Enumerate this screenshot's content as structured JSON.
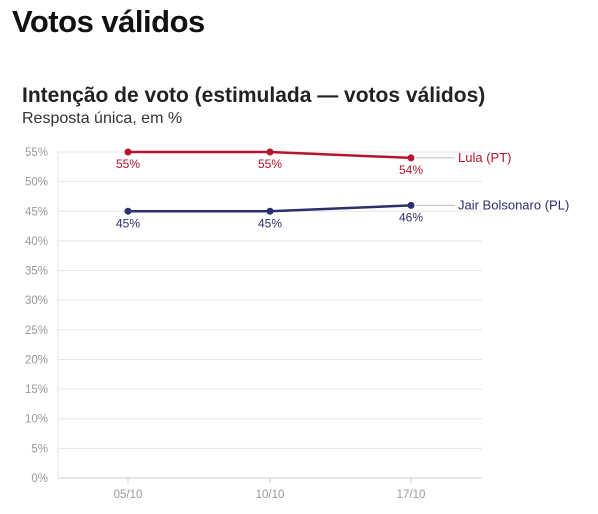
{
  "page": {
    "headline": "Votos válidos"
  },
  "chart_data": {
    "type": "line",
    "title": "Intenção de voto (estimulada — votos válidos)",
    "subtitle": "Resposta única, em %",
    "xlabel": "",
    "ylabel": "",
    "categories": [
      "05/10",
      "10/10",
      "17/10"
    ],
    "ylim": [
      0,
      55
    ],
    "yticks": [
      0,
      5,
      10,
      15,
      20,
      25,
      30,
      35,
      40,
      45,
      50,
      55
    ],
    "ytick_suffix": "%",
    "grid": true,
    "series": [
      {
        "name": "Lula (PT)",
        "values": [
          55,
          55,
          54
        ],
        "labels": [
          "55%",
          "55%",
          "54%"
        ],
        "color": "#b5162b",
        "label_position": "below"
      },
      {
        "name": "Jair Bolsonaro (PL)",
        "values": [
          45,
          45,
          46
        ],
        "labels": [
          "45%",
          "45%",
          "46%"
        ],
        "color": "#2c2f6b",
        "label_position": "below"
      }
    ]
  },
  "colors": {
    "grid": "#e6e6e6",
    "axis": "#cccccc",
    "tick_text": "#999999",
    "leader_line": "#bbbbbb"
  }
}
